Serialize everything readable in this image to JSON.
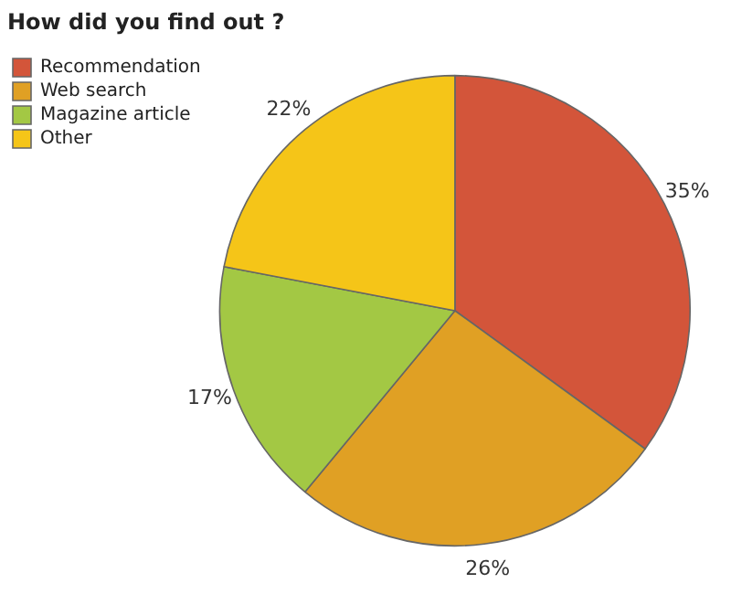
{
  "chart_data": {
    "type": "pie",
    "title": "How did you find out ?",
    "categories": [
      "Recommendation",
      "Web search",
      "Magazine article",
      "Other"
    ],
    "values": [
      35,
      26,
      17,
      22
    ],
    "colors": [
      "#d3553a",
      "#e0a024",
      "#a3c844",
      "#f5c518"
    ],
    "value_labels": [
      "35%",
      "26%",
      "17%",
      "22%"
    ],
    "legend": "top left"
  }
}
